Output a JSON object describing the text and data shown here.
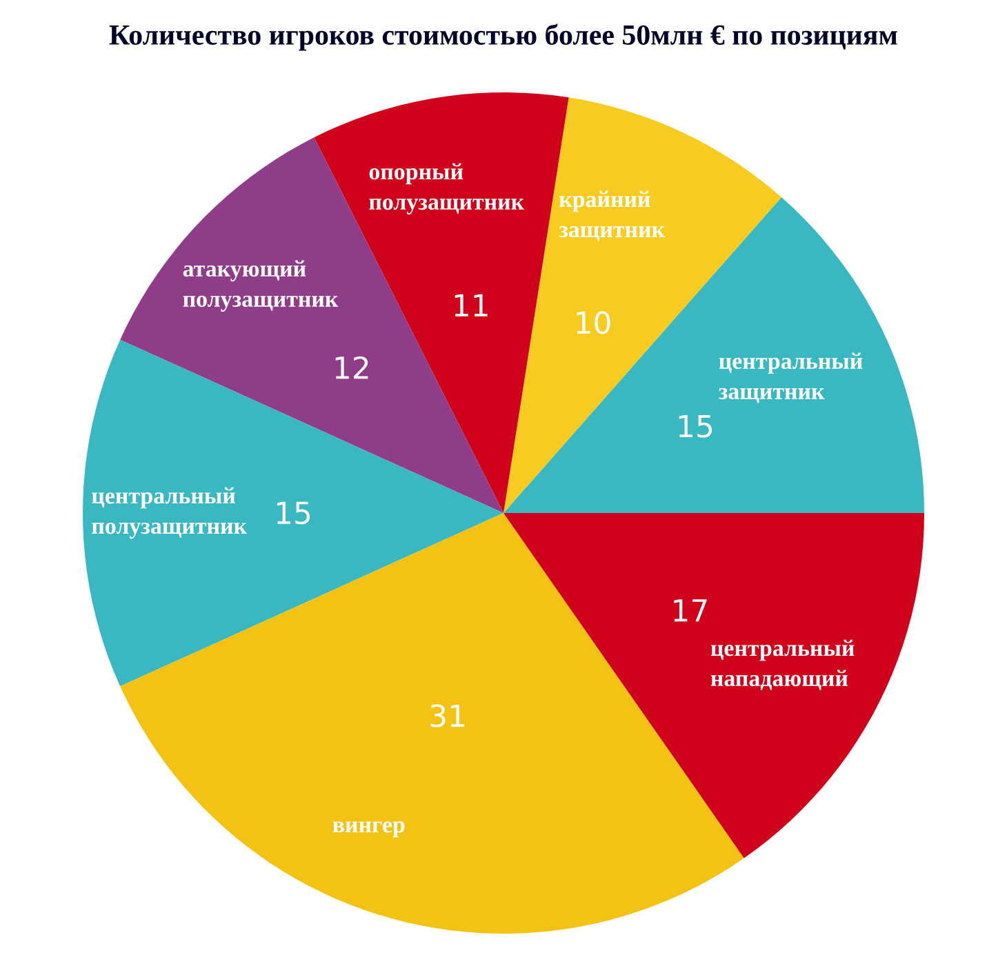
{
  "chart_data": {
    "type": "pie",
    "title": "Количество игроков стоимостью более 50млн € по позициям",
    "categories": [
      "центральный защитник",
      "крайний защитник",
      "опорный полузащитник",
      "атакующий полузащитник",
      "центральный полузащитник",
      "вингер",
      "центральный нападающий"
    ],
    "values": [
      15,
      10,
      11,
      12,
      15,
      31,
      17
    ],
    "colors": [
      "#3ab8c2",
      "#f7cb1f",
      "#d0011b",
      "#8f3d89",
      "#3ab8c2",
      "#f4c213",
      "#d0011b"
    ],
    "data_labels": true
  }
}
